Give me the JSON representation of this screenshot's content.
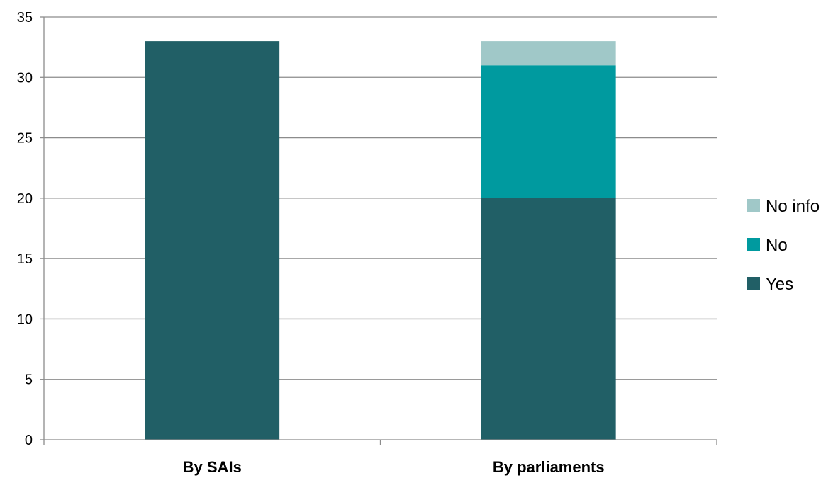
{
  "chart_data": {
    "type": "bar",
    "stacked": true,
    "categories": [
      "By SAIs",
      "By parliaments"
    ],
    "series": [
      {
        "name": "Yes",
        "values": [
          33,
          20
        ],
        "color": "#215f66"
      },
      {
        "name": "No",
        "values": [
          0,
          11
        ],
        "color": "#009a9f"
      },
      {
        "name": "No info",
        "values": [
          0,
          2
        ],
        "color": "#a0c8c8"
      }
    ],
    "ylim": [
      0,
      35
    ],
    "yticks": [
      0,
      5,
      10,
      15,
      20,
      25,
      30,
      35
    ],
    "grid": true,
    "legend_position": "right",
    "legend_order": [
      "No info",
      "No",
      "Yes"
    ]
  }
}
